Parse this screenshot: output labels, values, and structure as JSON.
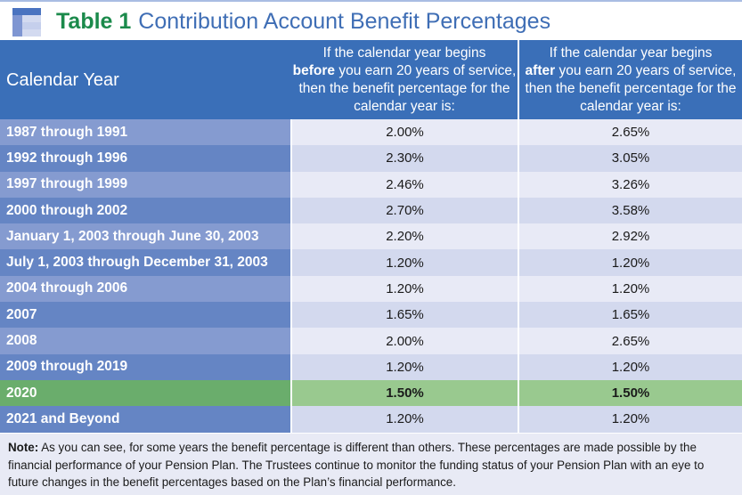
{
  "header": {
    "icon": "table-icon",
    "title_number": "Table 1",
    "title_text": "Contribution Account Benefit Percentages"
  },
  "table": {
    "columns": {
      "calendar_year": "Calendar Year",
      "before": {
        "line1": "If the calendar year begins",
        "emphasis": "before",
        "line2_rest": " you earn 20 years of service,",
        "line3": "then the benefit percentage for the",
        "line4": "calendar year is:"
      },
      "after": {
        "line1": "If the calendar year begins",
        "emphasis": "after",
        "line2_rest": " you earn 20 years of service,",
        "line3": "then the benefit percentage for the",
        "line4": "calendar year is:"
      }
    },
    "rows": [
      {
        "year": "1987 through 1991",
        "before": "2.00%",
        "after": "2.65%"
      },
      {
        "year": "1992 through 1996",
        "before": "2.30%",
        "after": "3.05%"
      },
      {
        "year": "1997 through 1999",
        "before": "2.46%",
        "after": "3.26%"
      },
      {
        "year": "2000 through 2002",
        "before": "2.70%",
        "after": "3.58%"
      },
      {
        "year": "January 1, 2003 through June 30, 2003",
        "before": "2.20%",
        "after": "2.92%"
      },
      {
        "year": "July 1, 2003 through December 31, 2003",
        "before": "1.20%",
        "after": "1.20%"
      },
      {
        "year": "2004 through 2006",
        "before": "1.20%",
        "after": "1.20%"
      },
      {
        "year": "2007",
        "before": "1.65%",
        "after": "1.65%"
      },
      {
        "year": "2008",
        "before": "2.00%",
        "after": "2.65%"
      },
      {
        "year": "2009 through 2019",
        "before": "1.20%",
        "after": "1.20%"
      },
      {
        "year": "2020",
        "before": "1.50%",
        "after": "1.50%",
        "highlight": true
      },
      {
        "year": "2021 and Beyond",
        "before": "1.20%",
        "after": "1.20%"
      }
    ]
  },
  "note": {
    "label": "Note:",
    "text": " As you can see, for some years the benefit percentage is different than others. These percentages are made possible by the financial performance of your Pension Plan. The Trustees continue to monitor the funding status of your Pension Plan with an eye to future changes in the benefit percentages based on the Plan’s financial performance."
  },
  "colors": {
    "title_number": "#1b8a4b",
    "title_text": "#3f6eb5",
    "header_bg": "#3a6fb8",
    "highlight_year_bg": "#6aad6c",
    "highlight_value_bg": "#99c98f"
  }
}
